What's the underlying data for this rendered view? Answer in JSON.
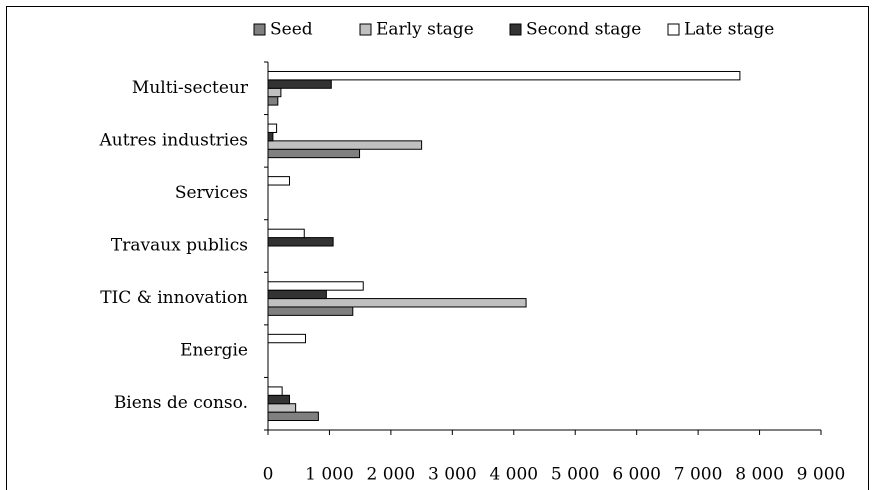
{
  "chart_data": {
    "type": "hbar",
    "categories": [
      "Multi-secteur",
      "Autres industries",
      "Services",
      "Travaux publics",
      "TIC & innovation",
      "Energie",
      "Biens de conso."
    ],
    "series": [
      {
        "name": "Seed",
        "color": "#808080",
        "values": [
          160,
          1490,
          0,
          0,
          1380,
          0,
          820
        ]
      },
      {
        "name": "Early stage",
        "color": "#c0c0c0",
        "values": [
          210,
          2500,
          0,
          0,
          4200,
          0,
          450
        ]
      },
      {
        "name": "Second stage",
        "color": "#333333",
        "values": [
          1030,
          80,
          0,
          1060,
          950,
          0,
          350
        ]
      },
      {
        "name": "Late stage",
        "color": "#ffffff",
        "values": [
          7680,
          140,
          350,
          590,
          1550,
          610,
          230
        ]
      }
    ],
    "xlim": [
      0,
      9000
    ],
    "xticks": [
      0,
      {
        "value": 1000,
        "label": "1 000"
      },
      {
        "value": 2000,
        "label": "2 000"
      },
      {
        "value": 3000,
        "label": "3 000"
      },
      {
        "value": 4000,
        "label": "4 000"
      },
      {
        "value": 5000,
        "label": "5 000"
      },
      {
        "value": 6000,
        "label": "6 000"
      },
      {
        "value": 7000,
        "label": "7 000"
      },
      {
        "value": 8000,
        "label": "8 000"
      },
      {
        "value": 9000,
        "label": "9 000"
      }
    ],
    "legend": "top"
  }
}
